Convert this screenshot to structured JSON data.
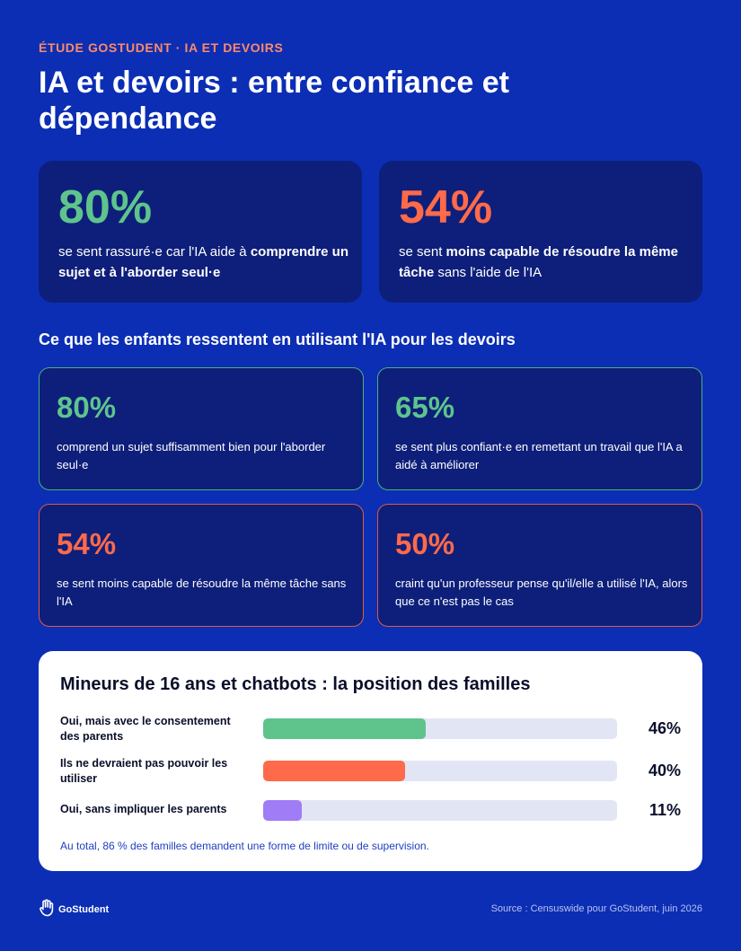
{
  "header": {
    "eyebrow": "ÉTUDE GOSTUDENT · IA ET DEVOIRS",
    "title": "IA et devoirs : entre confiance et dépendance"
  },
  "hero": [
    {
      "value": "80%",
      "text_before": "se sent rassuré·e car l'IA aide à ",
      "text_bold": "comprendre un sujet et à l'aborder seul·e",
      "text_after": "",
      "color": "#5ec48c"
    },
    {
      "value": "54%",
      "text_before": "se sent ",
      "text_bold": "moins capable de résoudre la même tâche",
      "text_after": " sans l'aide de l'IA",
      "color": "#ff6a4a"
    }
  ],
  "section": {
    "title": "Ce que les enfants ressentent en utilisant l'IA pour les devoirs"
  },
  "stats": [
    {
      "value": "80%",
      "text": "comprend un sujet suffisamment bien pour l'aborder seul·e",
      "color": "#5ec48c",
      "border": "#4fae7f"
    },
    {
      "value": "65%",
      "text": "se sent plus confiant·e en remettant un travail que l'IA a aidé à améliorer",
      "color": "#5ec48c",
      "border": "#4fae7f"
    },
    {
      "value": "54%",
      "text": "se sent moins capable de résoudre la même tâche sans l'IA",
      "color": "#ff6a4a",
      "border": "#e05a45"
    },
    {
      "value": "50%",
      "text": "craint qu'un professeur pense qu'il/elle a utilisé l'IA, alors que ce n'est pas le cas",
      "color": "#ff6a4a",
      "border": "#e05a45"
    }
  ],
  "panel": {
    "title": "Mineurs de 16 ans et chatbots : la position des familles",
    "note": "Au total, 86 % des familles demandent une forme de limite ou de supervision.",
    "bars": [
      {
        "label": "Oui, mais avec le consentement des parents",
        "value": 46,
        "value_label": "46%",
        "color": "#5ec48c"
      },
      {
        "label": "Ils ne devraient pas pouvoir les utiliser",
        "value": 40,
        "value_label": "40%",
        "color": "#ff6a4a"
      },
      {
        "label": "Oui, sans impliquer les parents",
        "value": 11,
        "value_label": "11%",
        "color": "#a07cf7"
      }
    ]
  },
  "footer": {
    "brand": "GoStudent",
    "logo_icon": "hand-icon",
    "source": "Source : Censuswide pour GoStudent, juin 2026"
  }
}
